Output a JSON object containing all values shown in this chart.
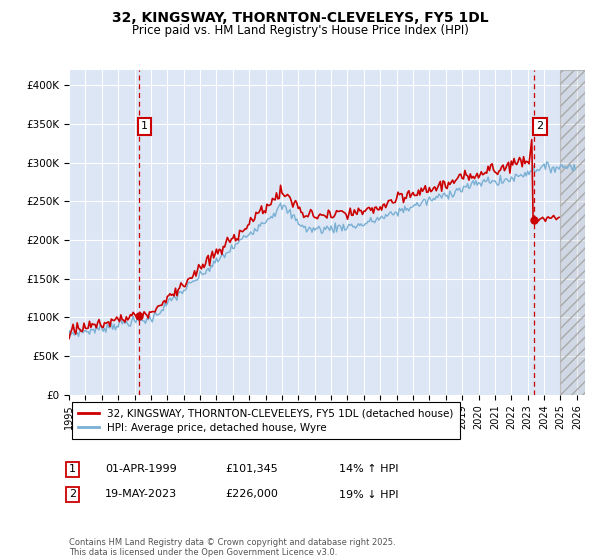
{
  "title": "32, KINGSWAY, THORNTON-CLEVELEYS, FY5 1DL",
  "subtitle": "Price paid vs. HM Land Registry's House Price Index (HPI)",
  "ylim": [
    0,
    420000
  ],
  "xlim_start": 1995.0,
  "xlim_end": 2026.5,
  "plot_bg": "#dce6f5",
  "legend_label_red": "32, KINGSWAY, THORNTON-CLEVELEYS, FY5 1DL (detached house)",
  "legend_label_blue": "HPI: Average price, detached house, Wyre",
  "annotation1_label": "1",
  "annotation1_date": "01-APR-1999",
  "annotation1_price": "£101,345",
  "annotation1_hpi": "14% ↑ HPI",
  "annotation2_label": "2",
  "annotation2_date": "19-MAY-2023",
  "annotation2_price": "£226,000",
  "annotation2_hpi": "19% ↓ HPI",
  "footer": "Contains HM Land Registry data © Crown copyright and database right 2025.\nThis data is licensed under the Open Government Licence v3.0.",
  "red_color": "#cc0000",
  "blue_color": "#7ab0d4",
  "yticks": [
    0,
    50000,
    100000,
    150000,
    200000,
    250000,
    300000,
    350000,
    400000
  ],
  "ytick_labels": [
    "£0",
    "£50K",
    "£100K",
    "£150K",
    "£200K",
    "£250K",
    "£300K",
    "£350K",
    "£400K"
  ],
  "point1_x": 1999.25,
  "point1_y": 101345,
  "point2_x": 2023.38,
  "point2_y": 226000
}
